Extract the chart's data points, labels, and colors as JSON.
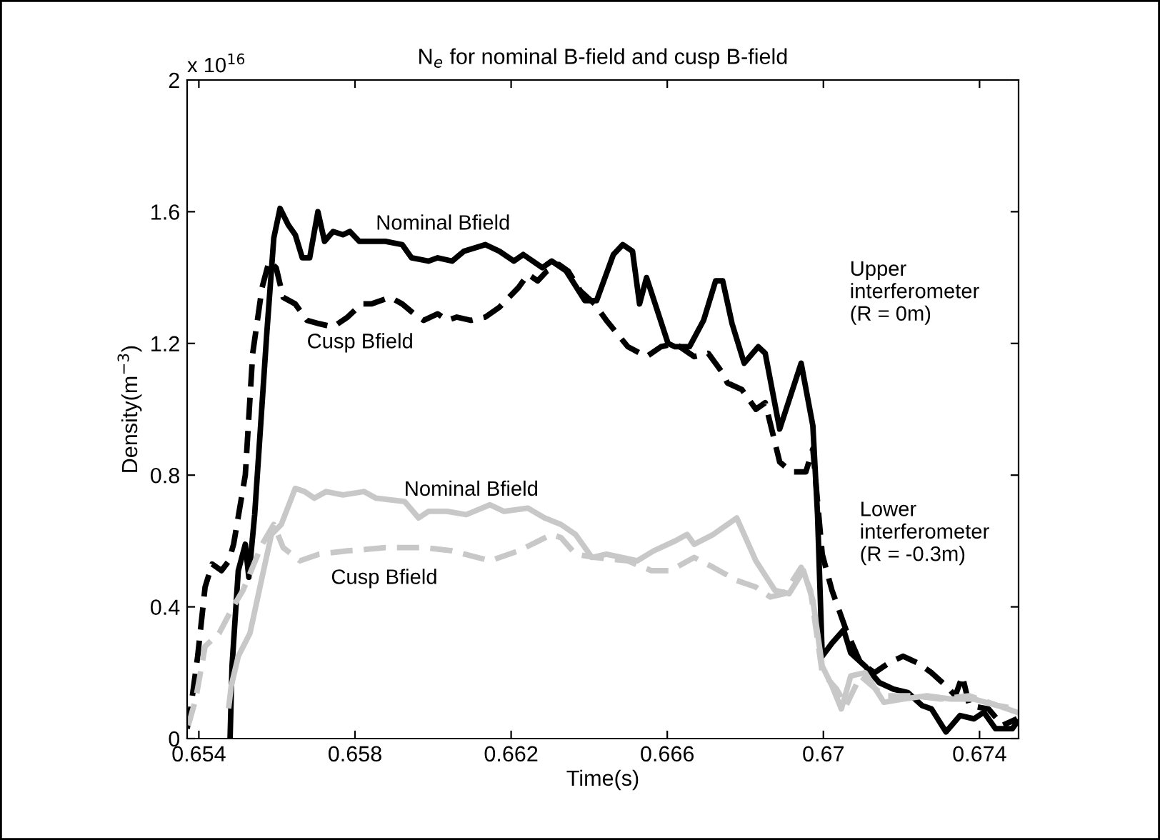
{
  "chart_data": {
    "type": "line",
    "title": "N$_{e}$ for nominal B-field and cusp B-field",
    "xlabel": "Time(s)",
    "ylabel": "Density(m$^{−3}$)",
    "xlim": [
      0.6537,
      0.675
    ],
    "ylim": [
      0,
      2
    ],
    "xticks": [
      0.654,
      0.658,
      0.662,
      0.666,
      0.67,
      0.674
    ],
    "yticks": [
      0,
      0.4,
      0.8,
      1.2,
      1.6,
      2
    ],
    "grid": false,
    "legend": false,
    "marker": "none",
    "series": [
      {
        "color": "#000000",
        "line_style": "solid",
        "x": [
          0.6548,
          0.65485,
          0.65501,
          0.65519,
          0.65528,
          0.65543,
          0.65574,
          0.65592,
          0.65608,
          0.65629,
          0.65647,
          0.65665,
          0.65684,
          0.65705,
          0.65722,
          0.65744,
          0.65769,
          0.65787,
          0.65811,
          0.65878,
          0.65921,
          0.65945,
          0.65988,
          0.66012,
          0.66049,
          0.66079,
          0.66134,
          0.6617,
          0.66207,
          0.66231,
          0.6628,
          0.66304,
          0.66341,
          0.66389,
          0.66419,
          0.66462,
          0.66486,
          0.66511,
          0.66529,
          0.66547,
          0.66602,
          0.6662,
          0.66657,
          0.66693,
          0.66724,
          0.66742,
          0.66766,
          0.66797,
          0.66833,
          0.66851,
          0.66888,
          0.66943,
          0.66973,
          0.66985,
          0.66997,
          0.67022,
          0.67052,
          0.6707,
          0.67107,
          0.67143,
          0.6718,
          0.67216,
          0.67253,
          0.67277,
          0.67314,
          0.6735,
          0.67386,
          0.67411,
          0.67441,
          0.67484,
          0.67496
        ],
        "values": [
          0,
          0.22,
          0.51,
          0.59,
          0.49,
          0.68,
          1.23,
          1.52,
          1.61,
          1.56,
          1.53,
          1.46,
          1.46,
          1.6,
          1.51,
          1.54,
          1.53,
          1.54,
          1.51,
          1.51,
          1.5,
          1.46,
          1.45,
          1.46,
          1.45,
          1.48,
          1.5,
          1.48,
          1.45,
          1.47,
          1.43,
          1.45,
          1.42,
          1.33,
          1.33,
          1.47,
          1.5,
          1.48,
          1.32,
          1.4,
          1.2,
          1.19,
          1.19,
          1.27,
          1.39,
          1.39,
          1.26,
          1.14,
          1.19,
          1.17,
          0.94,
          1.14,
          0.95,
          0.68,
          0.25,
          0.29,
          0.33,
          0.26,
          0.22,
          0.17,
          0.15,
          0.14,
          0.1,
          0.09,
          0.02,
          0.07,
          0.06,
          0.08,
          0.03,
          0.03,
          0.05
        ]
      },
      {
        "color": "#000000",
        "line_style": "dashed",
        "x": [
          0.6537,
          0.65379,
          0.65397,
          0.65416,
          0.65434,
          0.65458,
          0.65477,
          0.65489,
          0.65519,
          0.65538,
          0.65562,
          0.6558,
          0.65598,
          0.65616,
          0.65647,
          0.65677,
          0.65708,
          0.65744,
          0.65781,
          0.65817,
          0.65842,
          0.65866,
          0.6589,
          0.65921,
          0.65951,
          0.65976,
          0.66012,
          0.66036,
          0.66061,
          0.66097,
          0.66134,
          0.6617,
          0.66219,
          0.66243,
          0.66268,
          0.66292,
          0.66322,
          0.66346,
          0.66377,
          0.66414,
          0.66444,
          0.66499,
          0.66547,
          0.66584,
          0.6662,
          0.66669,
          0.66705,
          0.66742,
          0.66754,
          0.66791,
          0.66827,
          0.66851,
          0.66888,
          0.66918,
          0.66955,
          0.66973,
          0.66997,
          0.67022,
          0.67058,
          0.67095,
          0.67131,
          0.67168,
          0.67204,
          0.67241,
          0.67277,
          0.67314,
          0.67338,
          0.67356,
          0.67374,
          0.67423,
          0.67459,
          0.67496
        ],
        "values": [
          0.03,
          0.09,
          0.25,
          0.46,
          0.53,
          0.51,
          0.54,
          0.59,
          0.8,
          1.17,
          1.37,
          1.45,
          1.43,
          1.34,
          1.32,
          1.27,
          1.26,
          1.25,
          1.28,
          1.32,
          1.32,
          1.33,
          1.34,
          1.32,
          1.29,
          1.27,
          1.29,
          1.27,
          1.28,
          1.27,
          1.28,
          1.31,
          1.37,
          1.41,
          1.39,
          1.42,
          1.44,
          1.42,
          1.36,
          1.32,
          1.27,
          1.19,
          1.16,
          1.19,
          1.2,
          1.16,
          1.17,
          1.11,
          1.08,
          1.06,
          1.0,
          1.02,
          0.84,
          0.81,
          0.81,
          0.88,
          0.56,
          0.45,
          0.33,
          0.23,
          0.2,
          0.23,
          0.25,
          0.23,
          0.2,
          0.16,
          0.13,
          0.19,
          0.1,
          0.09,
          0.04,
          0.06
        ]
      },
      {
        "color": "#c8c8c8",
        "line_style": "solid",
        "x": [
          0.65477,
          0.65483,
          0.65501,
          0.65531,
          0.65562,
          0.65586,
          0.65611,
          0.65647,
          0.65671,
          0.65696,
          0.65726,
          0.65769,
          0.65823,
          0.65854,
          0.65927,
          0.65963,
          0.65988,
          0.66036,
          0.66085,
          0.66146,
          0.66182,
          0.66243,
          0.66286,
          0.66328,
          0.66365,
          0.66407,
          0.66444,
          0.66523,
          0.66565,
          0.6662,
          0.66651,
          0.66669,
          0.66718,
          0.66778,
          0.66827,
          0.66876,
          0.66912,
          0.66949,
          0.66973,
          0.66997,
          0.67022,
          0.67046,
          0.6707,
          0.67107,
          0.67155,
          0.67204,
          0.67265,
          0.67326,
          0.67386,
          0.67447,
          0.67496
        ],
        "values": [
          0.1,
          0.16,
          0.25,
          0.32,
          0.49,
          0.62,
          0.65,
          0.76,
          0.75,
          0.73,
          0.75,
          0.74,
          0.75,
          0.73,
          0.72,
          0.67,
          0.69,
          0.69,
          0.68,
          0.71,
          0.69,
          0.7,
          0.67,
          0.65,
          0.62,
          0.55,
          0.56,
          0.54,
          0.57,
          0.6,
          0.62,
          0.59,
          0.62,
          0.67,
          0.54,
          0.45,
          0.44,
          0.51,
          0.42,
          0.22,
          0.16,
          0.09,
          0.19,
          0.2,
          0.11,
          0.12,
          0.13,
          0.12,
          0.12,
          0.1,
          0.08
        ]
      },
      {
        "color": "#c8c8c8",
        "line_style": "dashed",
        "x": [
          0.65373,
          0.65392,
          0.65416,
          0.65452,
          0.65483,
          0.65513,
          0.65562,
          0.65592,
          0.65616,
          0.65659,
          0.65708,
          0.65781,
          0.65878,
          0.65976,
          0.66049,
          0.66146,
          0.66219,
          0.66304,
          0.66328,
          0.66365,
          0.66414,
          0.66499,
          0.66559,
          0.66608,
          0.66669,
          0.66718,
          0.66778,
          0.66827,
          0.66864,
          0.669,
          0.66943,
          0.66967,
          0.66997,
          0.67034,
          0.67058,
          0.67095,
          0.67155,
          0.67229,
          0.67301,
          0.67374,
          0.67447,
          0.67496
        ],
        "values": [
          0.04,
          0.12,
          0.28,
          0.32,
          0.39,
          0.45,
          0.59,
          0.65,
          0.58,
          0.54,
          0.56,
          0.57,
          0.58,
          0.58,
          0.57,
          0.54,
          0.57,
          0.62,
          0.61,
          0.56,
          0.55,
          0.54,
          0.51,
          0.51,
          0.55,
          0.52,
          0.48,
          0.46,
          0.43,
          0.44,
          0.52,
          0.45,
          0.2,
          0.15,
          0.1,
          0.19,
          0.13,
          0.13,
          0.12,
          0.13,
          0.1,
          0.09
        ]
      }
    ],
    "annotations": [
      "x 10$^{16}$",
      "Nominal Bfield",
      "Cusp Bfield",
      "Nominal Bfield",
      "Cusp Bfield",
      "Upper\ninterferometer\n(R = 0m)",
      "Lower\ninterferometer\n(R = -0.3m)"
    ]
  }
}
